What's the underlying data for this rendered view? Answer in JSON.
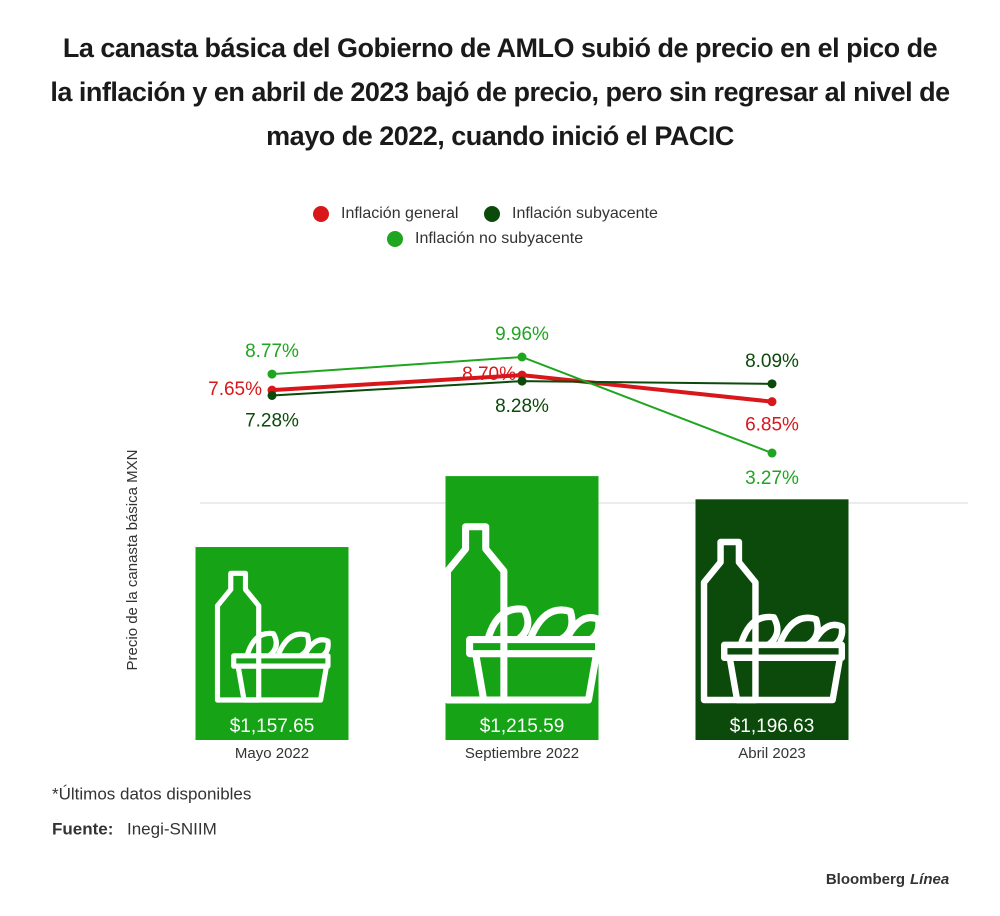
{
  "chart_data": {
    "type": "bar",
    "title": "La canasta básica del Gobierno de AMLO subió de precio en el pico de la inflación y en abril de 2023 bajó de precio,  pero sin regresar al nivel de mayo de 2022, cuando inició el PACIC",
    "y_label": "Precio de la canasta básica MXN",
    "categories": [
      "Mayo 2022",
      "Septiembre 2022",
      "Abril 2023"
    ],
    "values": [
      1157.65,
      1215.59,
      1196.63
    ],
    "value_labels": [
      "$1,157.65",
      "$1,215.59",
      "$1,196.63"
    ],
    "colors": [
      "#16a316",
      "#16a316",
      "#0b4a0b"
    ],
    "ylim": [
      1000,
      1250
    ],
    "y2lim": [
      0,
      14
    ],
    "series": [
      {
        "name": "Inflación general",
        "color": "#d8171b",
        "type": "line",
        "axis": "y2",
        "values": [
          7.65,
          8.7,
          6.85
        ],
        "value_labels": [
          "7.65%",
          "8.70%",
          "6.85%"
        ]
      },
      {
        "name": "Inflación subyacente",
        "color": "#0b4a0b",
        "type": "line",
        "axis": "y2",
        "values": [
          7.28,
          8.28,
          8.09
        ],
        "value_labels": [
          "7.28%",
          "8.28%",
          "8.09%"
        ]
      },
      {
        "name": "Inflación no subyacente",
        "color": "#1fa51f",
        "type": "line",
        "axis": "y2",
        "values": [
          8.77,
          9.96,
          3.27
        ],
        "value_labels": [
          "8.77%",
          "9.96%",
          "3.27%"
        ]
      }
    ]
  },
  "footer": {
    "note": "*Últimos datos disponibles",
    "source_label": "Fuente:",
    "source": "Inegi-SNIIM",
    "brand": "Bloomberg",
    "brand_accent": "Línea"
  }
}
